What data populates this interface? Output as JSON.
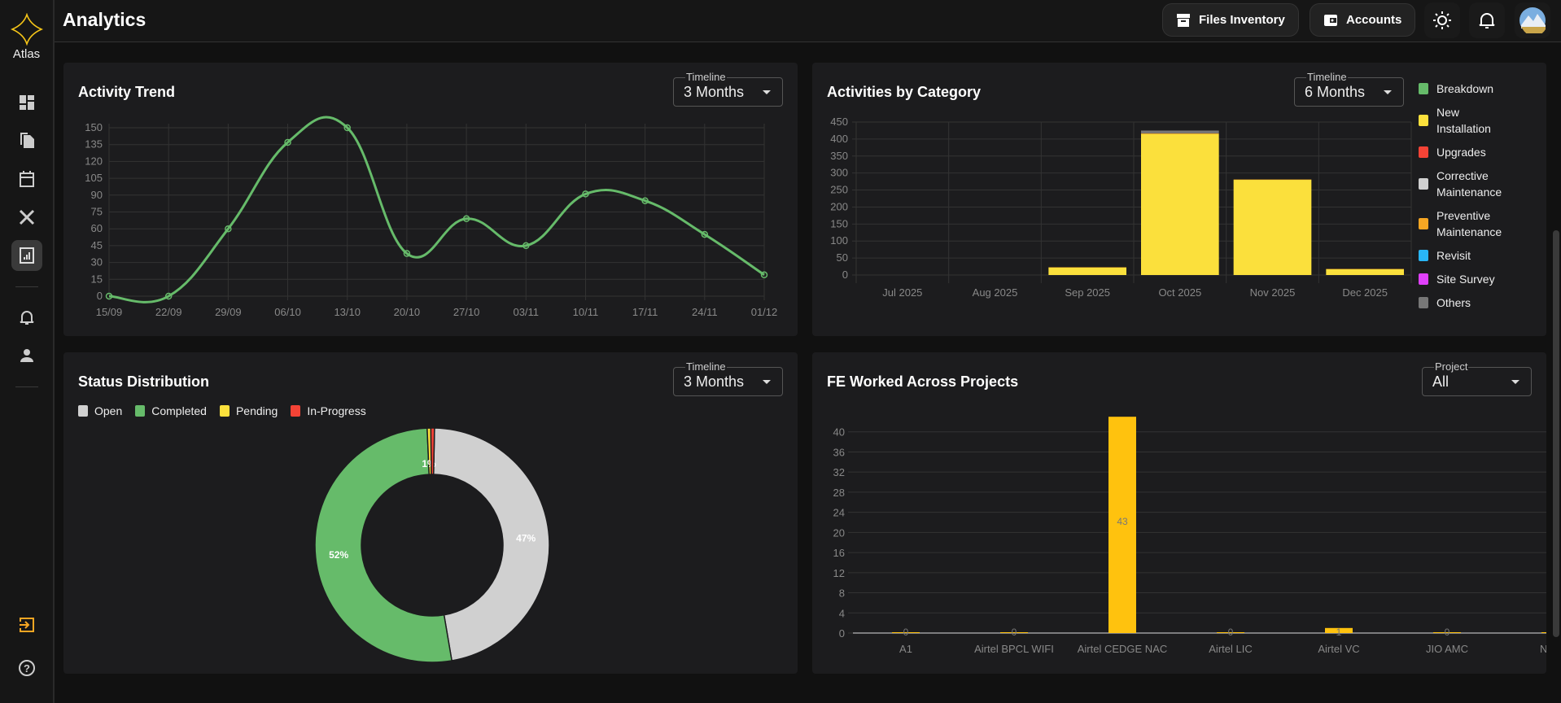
{
  "app": {
    "logo_text": "Atlas",
    "title": "Analytics"
  },
  "header": {
    "files_inventory": "Files Inventory",
    "accounts": "Accounts"
  },
  "colors": {
    "accent": "#f5c518",
    "green": "#66bb6a",
    "yellow": "#fbe03c",
    "bar": "#ffc20e"
  },
  "activity_trend": {
    "title": "Activity Trend",
    "timeline_label": "Timeline",
    "timeline_value": "3 Months"
  },
  "activities_by_category": {
    "title": "Activities by Category",
    "timeline_label": "Timeline",
    "timeline_value": "6 Months"
  },
  "status_distribution": {
    "title": "Status Distribution",
    "timeline_label": "Timeline",
    "timeline_value": "3 Months"
  },
  "fe_worked": {
    "title": "FE Worked Across Projects",
    "project_label": "Project",
    "project_value": "All"
  },
  "chart_data": [
    {
      "type": "line",
      "title": "Activity Trend",
      "x": [
        "15/09",
        "22/09",
        "29/09",
        "06/10",
        "13/10",
        "20/10",
        "27/10",
        "03/11",
        "10/11",
        "17/11",
        "24/11",
        "01/12"
      ],
      "values": [
        0,
        0,
        60,
        137,
        150,
        38,
        69,
        45,
        91,
        85,
        55,
        19
      ],
      "ylim": [
        0,
        150
      ],
      "yticks": [
        0,
        15,
        30,
        45,
        60,
        75,
        90,
        105,
        120,
        135,
        150
      ],
      "grid": true,
      "color": "#66bb6a"
    },
    {
      "type": "bar",
      "stacked": true,
      "title": "Activities by Category",
      "categories": [
        "Jul 2025",
        "Aug 2025",
        "Sep 2025",
        "Oct 2025",
        "Nov 2025",
        "Dec 2025"
      ],
      "ylim": [
        0,
        450
      ],
      "yticks": [
        0,
        50,
        100,
        150,
        200,
        250,
        300,
        350,
        400,
        450
      ],
      "legend": "right",
      "series": [
        {
          "name": "Breakdown",
          "color": "#66bb6a",
          "values": [
            0,
            0,
            0,
            0,
            0,
            0
          ]
        },
        {
          "name": "New Installation",
          "color": "#fbe03c",
          "values": [
            0,
            0,
            22,
            415,
            280,
            17
          ]
        },
        {
          "name": "Upgrades",
          "color": "#f44336",
          "values": [
            0,
            0,
            0,
            0,
            0,
            0
          ]
        },
        {
          "name": "Corrective Maintenance",
          "color": "#d0d0d0",
          "values": [
            0,
            0,
            0,
            0,
            0,
            0
          ]
        },
        {
          "name": "Preventive Maintenance",
          "color": "#f5a623",
          "values": [
            0,
            0,
            1,
            2,
            1,
            1
          ]
        },
        {
          "name": "Revisit",
          "color": "#29b6f6",
          "values": [
            0,
            0,
            0,
            0,
            0,
            0
          ]
        },
        {
          "name": "Site Survey",
          "color": "#e040fb",
          "values": [
            0,
            0,
            0,
            0,
            0,
            0
          ]
        },
        {
          "name": "Others",
          "color": "#777777",
          "values": [
            0,
            0,
            0,
            8,
            0,
            0
          ]
        }
      ]
    },
    {
      "type": "pie",
      "donut": true,
      "title": "Status Distribution",
      "legend": "top-left",
      "slices": [
        {
          "name": "Open",
          "value": 47,
          "label": "47%",
          "color": "#d0d0d0"
        },
        {
          "name": "Completed",
          "value": 52,
          "label": "52%",
          "color": "#66bb6a"
        },
        {
          "name": "Pending",
          "value": 0.5,
          "label": "1%",
          "color": "#fbe03c"
        },
        {
          "name": "In-Progress",
          "value": 0.5,
          "label": "",
          "color": "#f44336"
        }
      ]
    },
    {
      "type": "bar",
      "title": "FE Worked Across Projects",
      "categories": [
        "A1",
        "Airtel BPCL WIFI",
        "Airtel CEDGE NAC",
        "Airtel LIC",
        "Airtel VC",
        "JIO AMC",
        "NTT H"
      ],
      "values": [
        0,
        0,
        43,
        0,
        1,
        0,
        0
      ],
      "data_labels": [
        "0",
        "0",
        "43",
        "0",
        "1",
        "0",
        ""
      ],
      "ylim": [
        0,
        44
      ],
      "yticks": [
        0,
        4,
        8,
        12,
        16,
        20,
        24,
        28,
        32,
        36,
        40
      ],
      "color": "#ffc20e"
    }
  ]
}
